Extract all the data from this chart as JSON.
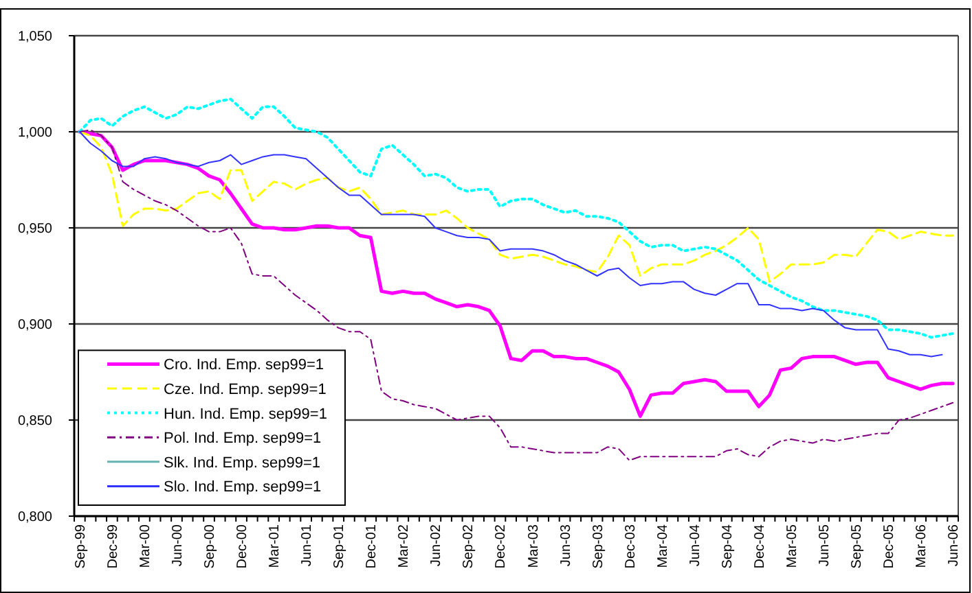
{
  "chart_data": {
    "type": "line",
    "categories": [
      "Sep-99",
      null,
      null,
      "Dec-99",
      null,
      null,
      "Mar-00",
      null,
      null,
      "Jun-00",
      null,
      null,
      "Sep-00",
      null,
      null,
      "Dec-00",
      null,
      null,
      "Mar-01",
      null,
      null,
      "Jun-01",
      null,
      null,
      "Sep-01",
      null,
      null,
      "Dec-01",
      null,
      null,
      "Mar-02",
      null,
      null,
      "Jun-02",
      null,
      null,
      "Sep-02",
      null,
      null,
      "Dec-02",
      null,
      null,
      "Mar-03",
      null,
      null,
      "Jun-03",
      null,
      null,
      "Sep-03",
      null,
      null,
      "Dec-03",
      null,
      null,
      "Mar-04",
      null,
      null,
      "Jun-04",
      null,
      null,
      "Sep-04",
      null,
      null,
      "Dec-04",
      null,
      null,
      "Mar-05",
      null,
      null,
      "Jun-05",
      null,
      null,
      "Sep-05",
      null,
      null,
      "Dec-05",
      null,
      null,
      "Mar-06",
      null,
      null,
      "Jun-06"
    ],
    "ylim": [
      0.8,
      1.05
    ],
    "yticks": [
      {
        "value": 0.8,
        "label": "0,800"
      },
      {
        "value": 0.85,
        "label": "0,850"
      },
      {
        "value": 0.9,
        "label": "0,900"
      },
      {
        "value": 0.95,
        "label": "0,950"
      },
      {
        "value": 1.0,
        "label": "1,000"
      },
      {
        "value": 1.05,
        "label": "1,050"
      }
    ],
    "grid": "y",
    "legend": "bottom left",
    "marker": "none",
    "series": [
      {
        "name": "Cro. Ind. Emp. sep99=1",
        "color": "#ff00ff",
        "line_style": "solid",
        "values": [
          1.0,
          0.999,
          0.998,
          0.992,
          0.98,
          0.983,
          0.985,
          0.985,
          0.985,
          0.984,
          0.983,
          0.981,
          0.977,
          0.975,
          0.968,
          0.96,
          0.952,
          0.95,
          0.95,
          0.949,
          0.949,
          0.95,
          0.951,
          0.951,
          0.95,
          0.95,
          0.946,
          0.945,
          0.917,
          0.916,
          0.917,
          0.916,
          0.916,
          0.913,
          0.911,
          0.909,
          0.91,
          0.909,
          0.907,
          0.899,
          0.882,
          0.881,
          0.886,
          0.886,
          0.883,
          0.883,
          0.882,
          0.882,
          0.88,
          0.878,
          0.875,
          0.866,
          0.852,
          0.863,
          0.864,
          0.864,
          0.869,
          0.87,
          0.871,
          0.87,
          0.865,
          0.865,
          0.865,
          0.857,
          0.863,
          0.876,
          0.877,
          0.882,
          0.883,
          0.883,
          0.883,
          0.881,
          0.879,
          0.88,
          0.88,
          0.872,
          0.87,
          0.868,
          0.866,
          0.868,
          0.869,
          0.869
        ]
      },
      {
        "name": "Cze. Ind. Emp. sep99=1",
        "color": "#ffff00",
        "line_style": "dashed",
        "values": [
          1.0,
          0.998,
          0.992,
          0.978,
          0.951,
          0.957,
          0.96,
          0.96,
          0.959,
          0.96,
          0.964,
          0.968,
          0.969,
          0.965,
          0.98,
          0.98,
          0.964,
          0.969,
          0.974,
          0.973,
          0.97,
          0.973,
          0.975,
          0.976,
          0.971,
          0.969,
          0.971,
          0.965,
          0.957,
          0.958,
          0.959,
          0.957,
          0.957,
          0.957,
          0.959,
          0.955,
          0.95,
          0.947,
          0.944,
          0.936,
          0.934,
          0.935,
          0.936,
          0.935,
          0.933,
          0.931,
          0.93,
          0.928,
          0.927,
          0.935,
          0.946,
          0.941,
          0.925,
          0.929,
          0.931,
          0.931,
          0.931,
          0.933,
          0.936,
          0.938,
          0.941,
          0.945,
          0.95,
          0.944,
          0.922,
          0.926,
          0.931,
          0.931,
          0.931,
          0.932,
          0.936,
          0.936,
          0.935,
          0.942,
          0.949,
          0.948,
          0.944,
          0.946,
          0.948,
          0.947,
          0.946,
          0.946
        ]
      },
      {
        "name": "Hun. Ind. Emp. sep99=1",
        "color": "#00ffff",
        "line_style": "dotted",
        "values": [
          1.0,
          1.006,
          1.007,
          1.003,
          1.008,
          1.011,
          1.013,
          1.01,
          1.007,
          1.009,
          1.013,
          1.012,
          1.014,
          1.016,
          1.017,
          1.012,
          1.007,
          1.013,
          1.013,
          1.008,
          1.002,
          1.001,
          1.0,
          0.997,
          0.991,
          0.985,
          0.979,
          0.977,
          0.991,
          0.993,
          0.988,
          0.983,
          0.977,
          0.978,
          0.976,
          0.971,
          0.969,
          0.97,
          0.97,
          0.961,
          0.964,
          0.965,
          0.965,
          0.962,
          0.96,
          0.958,
          0.959,
          0.956,
          0.956,
          0.955,
          0.953,
          0.948,
          0.943,
          0.94,
          0.941,
          0.941,
          0.938,
          0.939,
          0.94,
          0.939,
          0.936,
          0.933,
          0.928,
          0.923,
          0.92,
          0.917,
          0.914,
          0.912,
          0.909,
          0.907,
          0.907,
          0.906,
          0.905,
          0.904,
          0.902,
          0.897,
          0.897,
          0.896,
          0.895,
          0.893,
          0.894,
          0.895
        ]
      },
      {
        "name": "Pol. Ind. Emp. sep99=1",
        "color": "#800080",
        "line_style": "dashdot",
        "values": [
          1.0,
          1.001,
          0.998,
          0.992,
          0.974,
          0.97,
          0.967,
          0.964,
          0.962,
          0.959,
          0.955,
          0.951,
          0.948,
          0.948,
          0.95,
          0.942,
          0.926,
          0.925,
          0.925,
          0.92,
          0.915,
          0.911,
          0.907,
          0.902,
          0.898,
          0.896,
          0.896,
          0.892,
          0.865,
          0.861,
          0.86,
          0.858,
          0.857,
          0.856,
          0.853,
          0.85,
          0.851,
          0.852,
          0.852,
          0.846,
          0.836,
          0.836,
          0.835,
          0.834,
          0.833,
          0.833,
          0.833,
          0.833,
          0.833,
          0.836,
          0.835,
          0.829,
          0.831,
          0.831,
          0.831,
          0.831,
          0.831,
          0.831,
          0.831,
          0.831,
          0.834,
          0.835,
          0.832,
          0.831,
          0.836,
          0.839,
          0.84,
          0.839,
          0.838,
          0.84,
          0.839,
          0.84,
          0.841,
          0.842,
          0.843,
          0.843,
          0.85,
          0.851,
          0.853,
          0.855,
          0.857,
          0.859
        ]
      },
      {
        "name": "Slk. Ind. Emp. sep99=1",
        "color": "#66b2b2",
        "line_style": "solid",
        "values": [
          null,
          null,
          null,
          null,
          null,
          null,
          null,
          null,
          null,
          null,
          null,
          null,
          null,
          null,
          null,
          null,
          null,
          null,
          null,
          null,
          null,
          null,
          null,
          null,
          null,
          null,
          null,
          null,
          null,
          null,
          null,
          null,
          null,
          null,
          null,
          null,
          null,
          null,
          null,
          null,
          null,
          null,
          null,
          null,
          null,
          null,
          null,
          null,
          null,
          null,
          null,
          null,
          null,
          null,
          null,
          null,
          null,
          null,
          null,
          null,
          null,
          null,
          null,
          null,
          null,
          null,
          null,
          null,
          null,
          null,
          null,
          null,
          null,
          null,
          null,
          null,
          null,
          null,
          null,
          null,
          null,
          null
        ]
      },
      {
        "name": "Slo. Ind. Emp. sep99=1",
        "color": "#3333ff",
        "line_style": "solid",
        "values": [
          1.0,
          0.994,
          0.99,
          0.985,
          0.982,
          0.982,
          0.986,
          0.987,
          0.986,
          0.984,
          0.983,
          0.982,
          0.984,
          0.985,
          0.988,
          0.983,
          0.985,
          0.987,
          0.988,
          0.988,
          0.987,
          0.986,
          0.981,
          0.976,
          0.971,
          0.967,
          0.967,
          0.962,
          0.957,
          0.957,
          0.957,
          0.957,
          0.956,
          0.95,
          0.948,
          0.946,
          0.945,
          0.945,
          0.944,
          0.938,
          0.939,
          0.939,
          0.939,
          0.938,
          0.936,
          0.933,
          0.931,
          0.928,
          0.925,
          0.928,
          0.929,
          0.924,
          0.92,
          0.921,
          0.921,
          0.922,
          0.922,
          0.918,
          0.916,
          0.915,
          0.918,
          0.921,
          0.921,
          0.91,
          0.91,
          0.908,
          0.908,
          0.907,
          0.908,
          0.907,
          0.902,
          0.898,
          0.897,
          0.897,
          0.897,
          0.887,
          0.886,
          0.884,
          0.884,
          0.883,
          0.884,
          null
        ]
      }
    ]
  }
}
